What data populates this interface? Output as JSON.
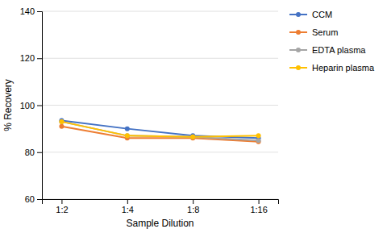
{
  "chart_data": {
    "type": "line",
    "categories": [
      "1:2",
      "1:4",
      "1:8",
      "1:16"
    ],
    "series": [
      {
        "name": "CCM",
        "color": "#4472C4",
        "values": [
          93.5,
          90,
          87,
          86
        ]
      },
      {
        "name": "Serum",
        "color": "#ED7D31",
        "values": [
          91,
          86,
          86,
          84.5
        ]
      },
      {
        "name": "EDTA plasma",
        "color": "#A5A5A5",
        "values": [
          93,
          87,
          86.5,
          85
        ]
      },
      {
        "name": "Heparin plasma",
        "color": "#FFC000",
        "values": [
          93,
          87,
          86.5,
          87
        ]
      }
    ],
    "xlabel": "Sample Dilution",
    "ylabel": "% Recovery",
    "ylim": [
      60,
      140
    ],
    "yticks": [
      60,
      80,
      100,
      120,
      140
    ],
    "grid": true,
    "legend": "right",
    "marker": "circle"
  }
}
